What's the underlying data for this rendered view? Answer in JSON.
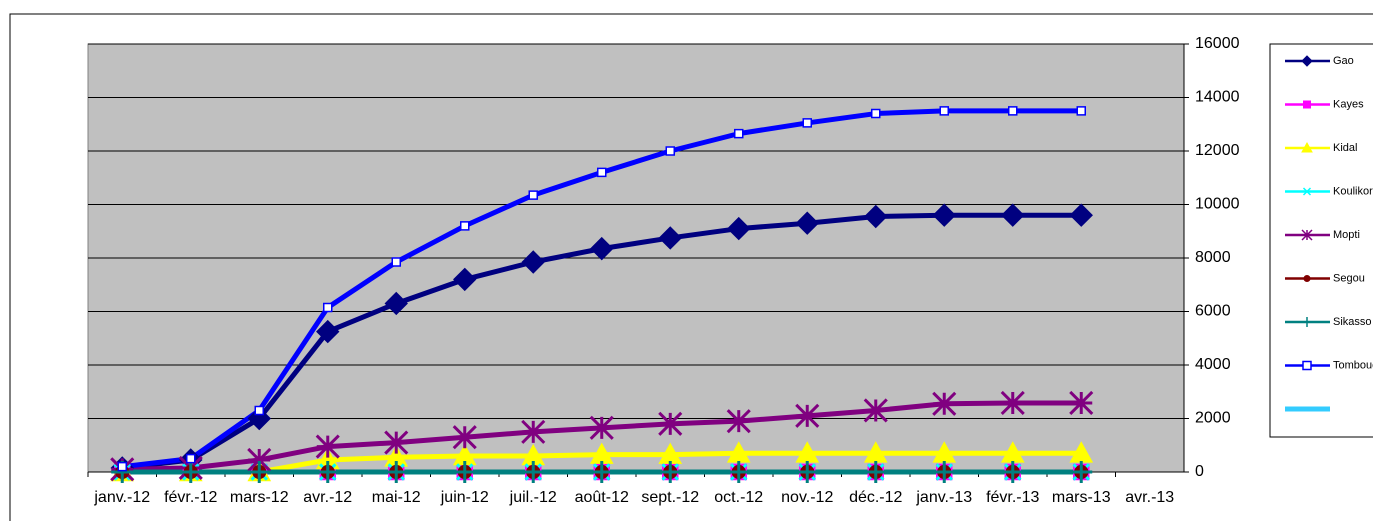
{
  "chart_data": {
    "type": "line",
    "categories": [
      "janv.-12",
      "févr.-12",
      "mars-12",
      "avr.-12",
      "mai-12",
      "juin-12",
      "juil.-12",
      "août-12",
      "sept.-12",
      "oct.-12",
      "nov.-12",
      "déc.-12",
      "janv.-13",
      "févr.-13",
      "mars-13",
      "avr.-13"
    ],
    "ylim": [
      0,
      16000
    ],
    "yticks": [
      0,
      2000,
      4000,
      6000,
      8000,
      10000,
      12000,
      14000,
      16000
    ],
    "grid": true,
    "series": [
      {
        "name": "Gao",
        "color": "#000080",
        "marker": "diamond",
        "values": [
          150,
          450,
          2000,
          5250,
          6300,
          7200,
          7850,
          8350,
          8750,
          9100,
          9300,
          9550,
          9600,
          9600,
          9600,
          null
        ]
      },
      {
        "name": "Kayes",
        "color": "#ff00ff",
        "marker": "square",
        "values": [
          0,
          0,
          0,
          0,
          0,
          0,
          0,
          0,
          0,
          0,
          0,
          0,
          0,
          0,
          0,
          null
        ]
      },
      {
        "name": "Kidal",
        "color": "#ffff00",
        "marker": "triangle",
        "values": [
          0,
          0,
          0,
          450,
          550,
          600,
          600,
          650,
          650,
          700,
          700,
          700,
          700,
          700,
          700,
          null
        ]
      },
      {
        "name": "Koulikoro",
        "color": "#00ffff",
        "marker": "x",
        "values": [
          0,
          0,
          0,
          0,
          0,
          0,
          0,
          0,
          0,
          0,
          0,
          0,
          0,
          0,
          0,
          null
        ]
      },
      {
        "name": "Mopti",
        "color": "#800080",
        "marker": "star",
        "values": [
          100,
          150,
          450,
          950,
          1100,
          1300,
          1500,
          1650,
          1800,
          1900,
          2100,
          2300,
          2550,
          2580,
          2580,
          null
        ]
      },
      {
        "name": "Segou",
        "color": "#800000",
        "marker": "circle",
        "values": [
          0,
          0,
          0,
          0,
          0,
          0,
          0,
          0,
          0,
          0,
          0,
          0,
          0,
          0,
          0,
          null
        ]
      },
      {
        "name": "Sikasso",
        "color": "#008080",
        "marker": "plus",
        "values": [
          0,
          0,
          0,
          0,
          0,
          0,
          0,
          0,
          0,
          0,
          0,
          0,
          0,
          0,
          0,
          null
        ]
      },
      {
        "name": "Tombouctou",
        "color": "#0000ff",
        "marker": "smallsquare",
        "values": [
          200,
          500,
          2300,
          6150,
          7850,
          9200,
          10350,
          11200,
          12000,
          12650,
          13050,
          13400,
          13500,
          13500,
          13500,
          null
        ]
      },
      {
        "color": "#33ccff"
      }
    ]
  }
}
